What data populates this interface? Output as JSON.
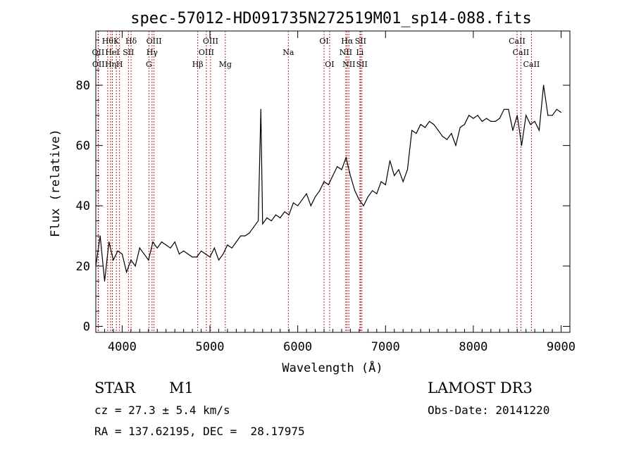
{
  "chart_data": {
    "type": "line",
    "title": "spec-57012-HD091735N272519M01_sp14-088.fits",
    "xlabel": "Wavelength (Å)",
    "ylabel": "Flux (relative)",
    "xlim": [
      3700,
      9100
    ],
    "ylim": [
      -2,
      98
    ],
    "xticks": [
      4000,
      5000,
      6000,
      7000,
      8000,
      9000
    ],
    "yticks": [
      0,
      20,
      40,
      60,
      80
    ],
    "series": [
      {
        "name": "spectrum",
        "x": [
          3700,
          3750,
          3800,
          3850,
          3900,
          3950,
          4000,
          4050,
          4100,
          4150,
          4200,
          4250,
          4300,
          4350,
          4400,
          4450,
          4500,
          4550,
          4600,
          4650,
          4700,
          4750,
          4800,
          4850,
          4900,
          4950,
          5000,
          5050,
          5100,
          5150,
          5200,
          5250,
          5300,
          5350,
          5400,
          5450,
          5500,
          5550,
          5580,
          5600,
          5650,
          5700,
          5750,
          5800,
          5850,
          5900,
          5950,
          6000,
          6050,
          6100,
          6150,
          6200,
          6250,
          6300,
          6350,
          6400,
          6450,
          6500,
          6550,
          6600,
          6650,
          6700,
          6750,
          6800,
          6850,
          6900,
          6950,
          7000,
          7050,
          7100,
          7150,
          7200,
          7250,
          7300,
          7350,
          7400,
          7450,
          7500,
          7550,
          7600,
          7650,
          7700,
          7750,
          7800,
          7850,
          7900,
          7950,
          8000,
          8050,
          8100,
          8150,
          8200,
          8250,
          8300,
          8350,
          8400,
          8450,
          8500,
          8550,
          8600,
          8650,
          8700,
          8750,
          8800,
          8850,
          8900,
          8950,
          9000
        ],
        "values": [
          20,
          30,
          15,
          28,
          22,
          25,
          24,
          18,
          22,
          20,
          26,
          24,
          22,
          28,
          26,
          28,
          27,
          26,
          28,
          24,
          25,
          24,
          23,
          23,
          25,
          24,
          23,
          26,
          22,
          24,
          27,
          26,
          28,
          30,
          30,
          31,
          33,
          35,
          72,
          34,
          36,
          35,
          37,
          36,
          38,
          37,
          41,
          40,
          42,
          44,
          40,
          43,
          45,
          48,
          47,
          50,
          53,
          52,
          56,
          50,
          45,
          42,
          40,
          43,
          45,
          44,
          48,
          47,
          55,
          50,
          52,
          48,
          52,
          65,
          64,
          67,
          66,
          68,
          67,
          65,
          63,
          62,
          64,
          60,
          66,
          67,
          70,
          69,
          70,
          68,
          69,
          68,
          68,
          69,
          72,
          72,
          65,
          70,
          60,
          70,
          67,
          68,
          65,
          80,
          70,
          70,
          72,
          71
        ]
      }
    ],
    "line_labels": [
      {
        "wavelength": 3835,
        "label": "Hθ",
        "row": 1
      },
      {
        "wavelength": 3727,
        "label": "OII",
        "row": 2
      },
      {
        "wavelength": 3730,
        "label": "OII",
        "row": 3
      },
      {
        "wavelength": 3934,
        "label": "K",
        "row": 1
      },
      {
        "wavelength": 3889,
        "label": "HeI",
        "row": 2
      },
      {
        "wavelength": 3869,
        "label": "Hη",
        "row": 3
      },
      {
        "wavelength": 3970,
        "label": "H",
        "row": 3
      },
      {
        "wavelength": 4072,
        "label": "SII",
        "row": 2
      },
      {
        "wavelength": 4102,
        "label": "Hδ",
        "row": 1
      },
      {
        "wavelength": 4363,
        "label": "OIII",
        "row": 1
      },
      {
        "wavelength": 4341,
        "label": "Hγ",
        "row": 2
      },
      {
        "wavelength": 4305,
        "label": "G",
        "row": 3
      },
      {
        "wavelength": 4861,
        "label": "Hβ",
        "row": 3
      },
      {
        "wavelength": 5007,
        "label": "OIII",
        "row": 1
      },
      {
        "wavelength": 4959,
        "label": "OIII",
        "row": 2
      },
      {
        "wavelength": 5175,
        "label": "Mg",
        "row": 3
      },
      {
        "wavelength": 5893,
        "label": "Na",
        "row": 2
      },
      {
        "wavelength": 6300,
        "label": "OI",
        "row": 1
      },
      {
        "wavelength": 6363,
        "label": "OI",
        "row": 3
      },
      {
        "wavelength": 6563,
        "label": "Hα",
        "row": 1
      },
      {
        "wavelength": 6548,
        "label": "NII",
        "row": 2
      },
      {
        "wavelength": 6583,
        "label": "NII",
        "row": 3
      },
      {
        "wavelength": 6716,
        "label": "SII",
        "row": 1
      },
      {
        "wavelength": 6708,
        "label": "Li",
        "row": 2
      },
      {
        "wavelength": 6731,
        "label": "SII",
        "row": 3
      },
      {
        "wavelength": 8498,
        "label": "CaII",
        "row": 1
      },
      {
        "wavelength": 8542,
        "label": "CaII",
        "row": 2
      },
      {
        "wavelength": 8662,
        "label": "CaII",
        "row": 3
      }
    ]
  },
  "info": {
    "object_type": "STAR",
    "subclass": "M1",
    "survey": "LAMOST DR3",
    "cz": "cz = 27.3 ± 5.4 km/s",
    "obs_date": "Obs-Date: 20141220",
    "coords": "RA = 137.62195, DEC =  28.17975"
  },
  "colors": {
    "ink": "#000000",
    "line_marker": "#b22222",
    "background": "#ffffff"
  }
}
